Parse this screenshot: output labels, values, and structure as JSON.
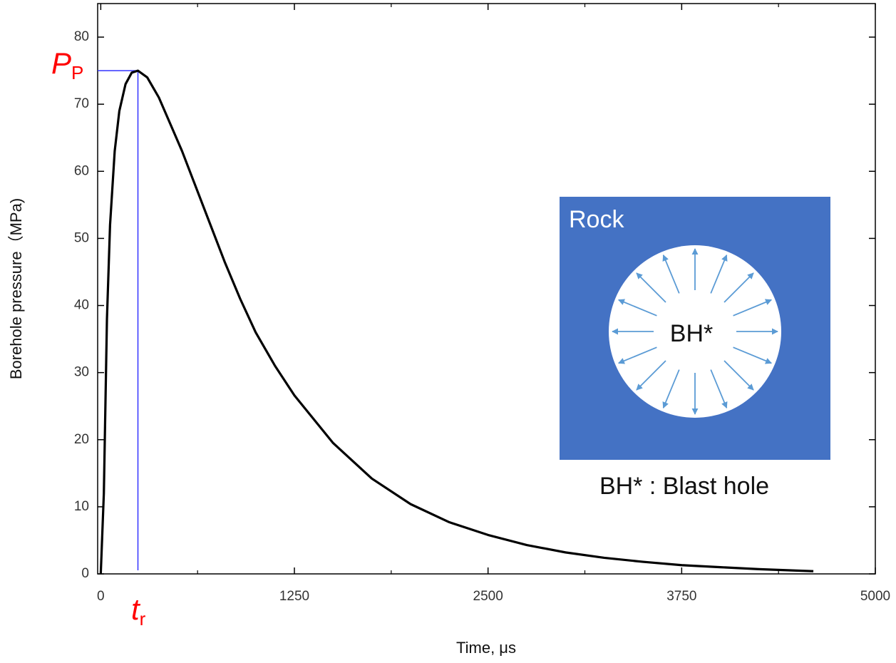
{
  "chart_data": {
    "type": "line",
    "xlabel": "Time, μs",
    "ylabel": "Borehole pressure（MPa)",
    "x": [
      0,
      20,
      40,
      60,
      90,
      120,
      160,
      200,
      240,
      300,
      375,
      450,
      525,
      600,
      700,
      800,
      900,
      1000,
      1125,
      1250,
      1500,
      1750,
      2000,
      2250,
      2500,
      2750,
      3000,
      3250,
      3500,
      3750,
      4000,
      4250,
      4600
    ],
    "series": [
      {
        "color": "#000000",
        "values": [
          0,
          12,
          38,
          52,
          63,
          69,
          73,
          74.7,
          75,
          74,
          71,
          67,
          63,
          58.5,
          52.5,
          46.5,
          41,
          36,
          31,
          26.6,
          19.5,
          14.2,
          10.4,
          7.7,
          5.8,
          4.3,
          3.2,
          2.4,
          1.8,
          1.3,
          1.0,
          0.7,
          0.4
        ]
      }
    ],
    "xlim": [
      -20,
      5000
    ],
    "ylim": [
      0,
      85
    ],
    "xticks": [
      0,
      1250,
      2500,
      3750,
      5000
    ],
    "xminorticks": [
      625,
      1875,
      3125,
      4375
    ],
    "yticks": [
      0,
      10,
      20,
      30,
      40,
      50,
      60,
      70,
      80
    ],
    "peak": {
      "x": 240,
      "y": 75,
      "color": "#3333ff",
      "y_label": "P",
      "y_label_sub": "P",
      "x_label": "t",
      "x_label_sub": "r",
      "label_color": "#ff0000"
    },
    "inset": {
      "region_label": "Rock",
      "hole_label": "BH*",
      "caption": "BH* : Blast hole",
      "color": "#4472c4",
      "arrow_color": "#5b9bd5"
    }
  }
}
